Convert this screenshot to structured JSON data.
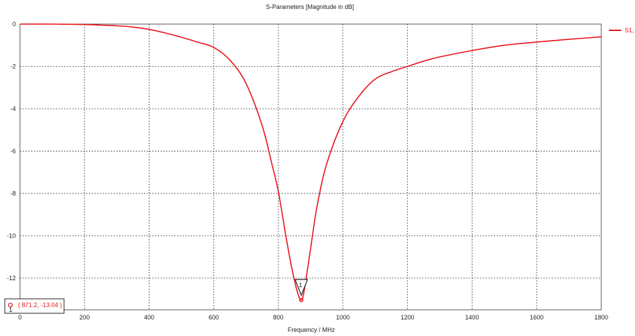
{
  "chart_data": {
    "type": "line",
    "title": "S-Parameters [Magnitude in dB]",
    "xlabel": "Frequency / MHz",
    "ylabel": "",
    "xlim": [
      0,
      1800
    ],
    "ylim": [
      -13.5,
      0
    ],
    "x_ticks": [
      0,
      200,
      400,
      600,
      800,
      1000,
      1200,
      1400,
      1600,
      1800
    ],
    "y_ticks": [
      0,
      -2,
      -4,
      -6,
      -8,
      -10,
      -12
    ],
    "grid": true,
    "legend_position": "top-right",
    "series": [
      {
        "name": "S1,",
        "color": "#e8141a",
        "x": [
          0,
          100,
          200,
          250,
          300,
          350,
          400,
          450,
          500,
          550,
          600,
          650,
          700,
          750,
          780,
          800,
          820,
          840,
          860,
          871.2,
          880,
          900,
          920,
          950,
          1000,
          1050,
          1100,
          1150,
          1200,
          1250,
          1300,
          1400,
          1500,
          1600,
          1700,
          1800
        ],
        "y": [
          0,
          0,
          -0.02,
          -0.05,
          -0.08,
          -0.14,
          -0.25,
          -0.42,
          -0.62,
          -0.85,
          -1.1,
          -1.7,
          -2.8,
          -4.8,
          -6.6,
          -7.9,
          -9.7,
          -11.4,
          -12.7,
          -13.04,
          -12.6,
          -10.6,
          -8.6,
          -6.6,
          -4.6,
          -3.4,
          -2.6,
          -2.25,
          -2.0,
          -1.75,
          -1.55,
          -1.25,
          -1.0,
          -0.85,
          -0.72,
          -0.6
        ]
      }
    ],
    "markers": [
      {
        "label": "1",
        "x": 871.2,
        "y": -13.04
      }
    ],
    "readout": "( 871.2, -13.04 )",
    "readout_index": "1"
  }
}
